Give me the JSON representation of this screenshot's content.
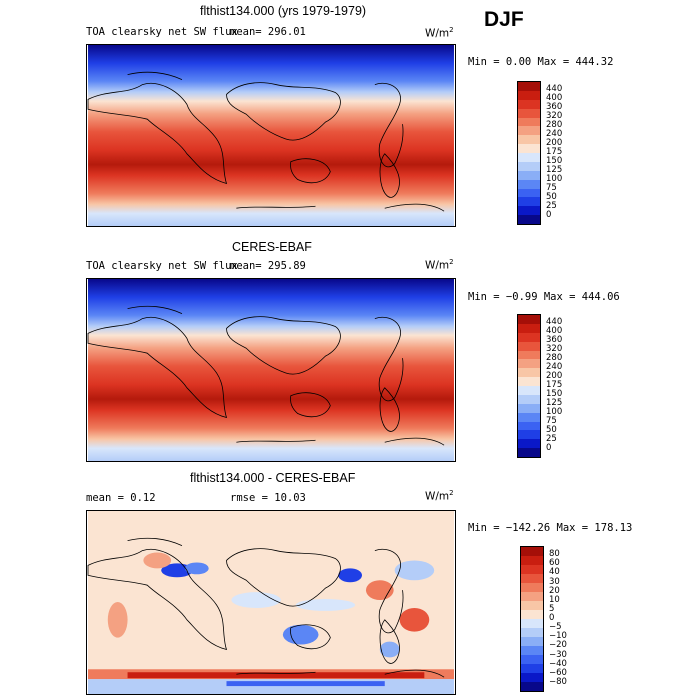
{
  "season": "DJF",
  "colors": {
    "positive_scale": [
      "#08088a",
      "#0a18c8",
      "#1f3fe6",
      "#3b62f2",
      "#5b86f5",
      "#8aaef6",
      "#b4cdf8",
      "#d8e6fb",
      "#fbe4d2",
      "#f8c6a6",
      "#f4a182",
      "#ef7b5c",
      "#e8553c",
      "#dc3422",
      "#c91e10",
      "#a50f08"
    ],
    "diff_scale": [
      "#08088a",
      "#0a18c8",
      "#1f3fe6",
      "#3b62f2",
      "#5b86f5",
      "#8aaef6",
      "#b4cdf8",
      "#d8e6fb",
      "#fbe4d2",
      "#f8c6a6",
      "#f4a182",
      "#ef7b5c",
      "#e8553c",
      "#dc3422",
      "#c91e10",
      "#a50f08"
    ]
  },
  "panels": [
    {
      "title": "flthist134.000 (yrs 1979-1979)",
      "variable_label": "TOA clearsky net SW flux",
      "mean_text": "mean= 296.01",
      "units_text": "W/m",
      "units_sup": "2",
      "minmax_text": "Min =    0.00 Max = 444.32",
      "colorbar_ticks": [
        "440",
        "400",
        "360",
        "320",
        "280",
        "240",
        "200",
        "175",
        "150",
        "125",
        "100",
        "75",
        "50",
        "25",
        "0"
      ]
    },
    {
      "title": "CERES-EBAF",
      "variable_label": "TOA clearsky net SW flux",
      "mean_text": "mean= 295.89",
      "units_text": "W/m",
      "units_sup": "2",
      "minmax_text": "Min =  −0.99 Max = 444.06",
      "colorbar_ticks": [
        "440",
        "400",
        "360",
        "320",
        "280",
        "240",
        "200",
        "175",
        "150",
        "125",
        "100",
        "75",
        "50",
        "25",
        "0"
      ]
    },
    {
      "title": "flthist134.000 - CERES-EBAF",
      "mean_text": "mean =    0.12",
      "rmse_text": "rmse =   10.03",
      "units_text": "W/m",
      "units_sup": "2",
      "minmax_text": "Min = −142.26 Max = 178.13",
      "colorbar_ticks": [
        "80",
        "60",
        "40",
        "30",
        "20",
        "10",
        "5",
        "0",
        "−5",
        "−10",
        "−20",
        "−30",
        "−40",
        "−60",
        "−80"
      ]
    }
  ],
  "chart_data": [
    {
      "type": "heatmap",
      "title": "flthist134.000 (yrs 1979-1979)",
      "subtitle": "TOA clearsky net SW flux",
      "units": "W/m2",
      "mean": 296.01,
      "min": 0.0,
      "max": 444.32,
      "colorbar_levels": [
        0,
        25,
        50,
        75,
        100,
        125,
        150,
        175,
        200,
        240,
        280,
        320,
        360,
        400,
        440
      ]
    },
    {
      "type": "heatmap",
      "title": "CERES-EBAF",
      "subtitle": "TOA clearsky net SW flux",
      "units": "W/m2",
      "mean": 295.89,
      "min": -0.99,
      "max": 444.06,
      "colorbar_levels": [
        0,
        25,
        50,
        75,
        100,
        125,
        150,
        175,
        200,
        240,
        280,
        320,
        360,
        400,
        440
      ]
    },
    {
      "type": "heatmap",
      "title": "flthist134.000 - CERES-EBAF",
      "units": "W/m2",
      "mean": 0.12,
      "rmse": 10.03,
      "min": -142.26,
      "max": 178.13,
      "colorbar_levels": [
        -80,
        -60,
        -40,
        -30,
        -20,
        -10,
        -5,
        0,
        5,
        10,
        20,
        30,
        40,
        60,
        80
      ]
    }
  ]
}
